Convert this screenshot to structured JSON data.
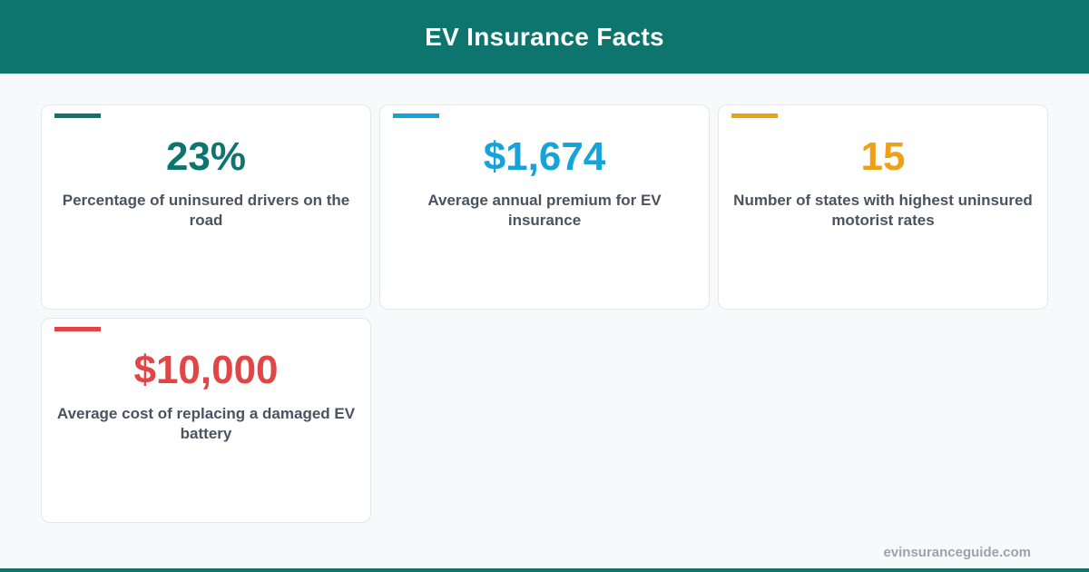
{
  "header": {
    "title": "EV Insurance Facts"
  },
  "stats": [
    {
      "value": "23%",
      "label": "Percentage of uninsured drivers on the road",
      "color": "#0e756e"
    },
    {
      "value": "$1,674",
      "label": "Average annual premium for EV insurance",
      "color": "#16a3dc"
    },
    {
      "value": "15",
      "label": "Number of states with highest uninsured motorist rates",
      "color": "#f0a015"
    },
    {
      "value": "$10,000",
      "label": "Average cost of replacing a damaged EV battery",
      "color": "#e04646"
    }
  ],
  "footer": {
    "url": "evinsuranceguide.com"
  }
}
